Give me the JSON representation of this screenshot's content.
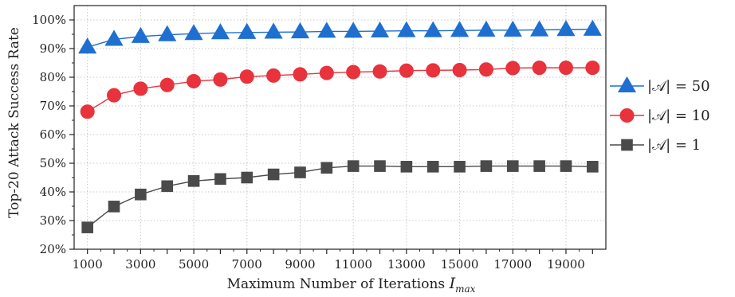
{
  "chart_data": {
    "type": "line",
    "xlabel": "Maximum Number of Iterations ",
    "xlabel_var": "I",
    "xlabel_sub": "max",
    "ylabel": "Top-20 Attack Success Rate",
    "x": [
      1000,
      2000,
      3000,
      4000,
      5000,
      6000,
      7000,
      8000,
      9000,
      10000,
      11000,
      12000,
      13000,
      14000,
      15000,
      16000,
      17000,
      18000,
      19000,
      20000
    ],
    "xlim": [
      500,
      20500
    ],
    "ylim": [
      20,
      105
    ],
    "x_tick_labels": [
      "1000",
      "3000",
      "5000",
      "7000",
      "9000",
      "11000",
      "13000",
      "15000",
      "17000",
      "19000"
    ],
    "x_tick_values": [
      1000,
      3000,
      5000,
      7000,
      9000,
      11000,
      13000,
      15000,
      17000,
      19000
    ],
    "y_tick_values": [
      20,
      30,
      40,
      50,
      60,
      70,
      80,
      90,
      100
    ],
    "y_tick_labels": [
      "20%",
      "30%",
      "40%",
      "50%",
      "60%",
      "70%",
      "80%",
      "90%",
      "100%"
    ],
    "grid": true,
    "legend_position": "right",
    "series": [
      {
        "name": "|𝒜| = 50",
        "marker": "triangle",
        "color": "#1f6fd1",
        "values": [
          90.5,
          93.2,
          94.2,
          94.8,
          95.2,
          95.5,
          95.6,
          95.7,
          95.8,
          96.0,
          96.0,
          96.1,
          96.2,
          96.2,
          96.3,
          96.4,
          96.4,
          96.5,
          96.6,
          96.7
        ]
      },
      {
        "name": "|𝒜| = 10",
        "marker": "circle",
        "color": "#e8323c",
        "values": [
          68.0,
          73.7,
          76.0,
          77.3,
          78.6,
          79.2,
          80.2,
          80.6,
          81.0,
          81.5,
          81.8,
          82.0,
          82.3,
          82.4,
          82.5,
          82.7,
          83.2,
          83.3,
          83.3,
          83.3
        ]
      },
      {
        "name": "|𝒜| = 1",
        "marker": "square",
        "color": "#4a4a4a",
        "values": [
          27.6,
          34.9,
          39.1,
          42.0,
          43.8,
          44.5,
          45.0,
          46.1,
          46.8,
          48.4,
          49.0,
          49.0,
          48.8,
          48.8,
          48.8,
          49.0,
          49.0,
          49.0,
          49.0,
          48.8
        ]
      }
    ]
  }
}
